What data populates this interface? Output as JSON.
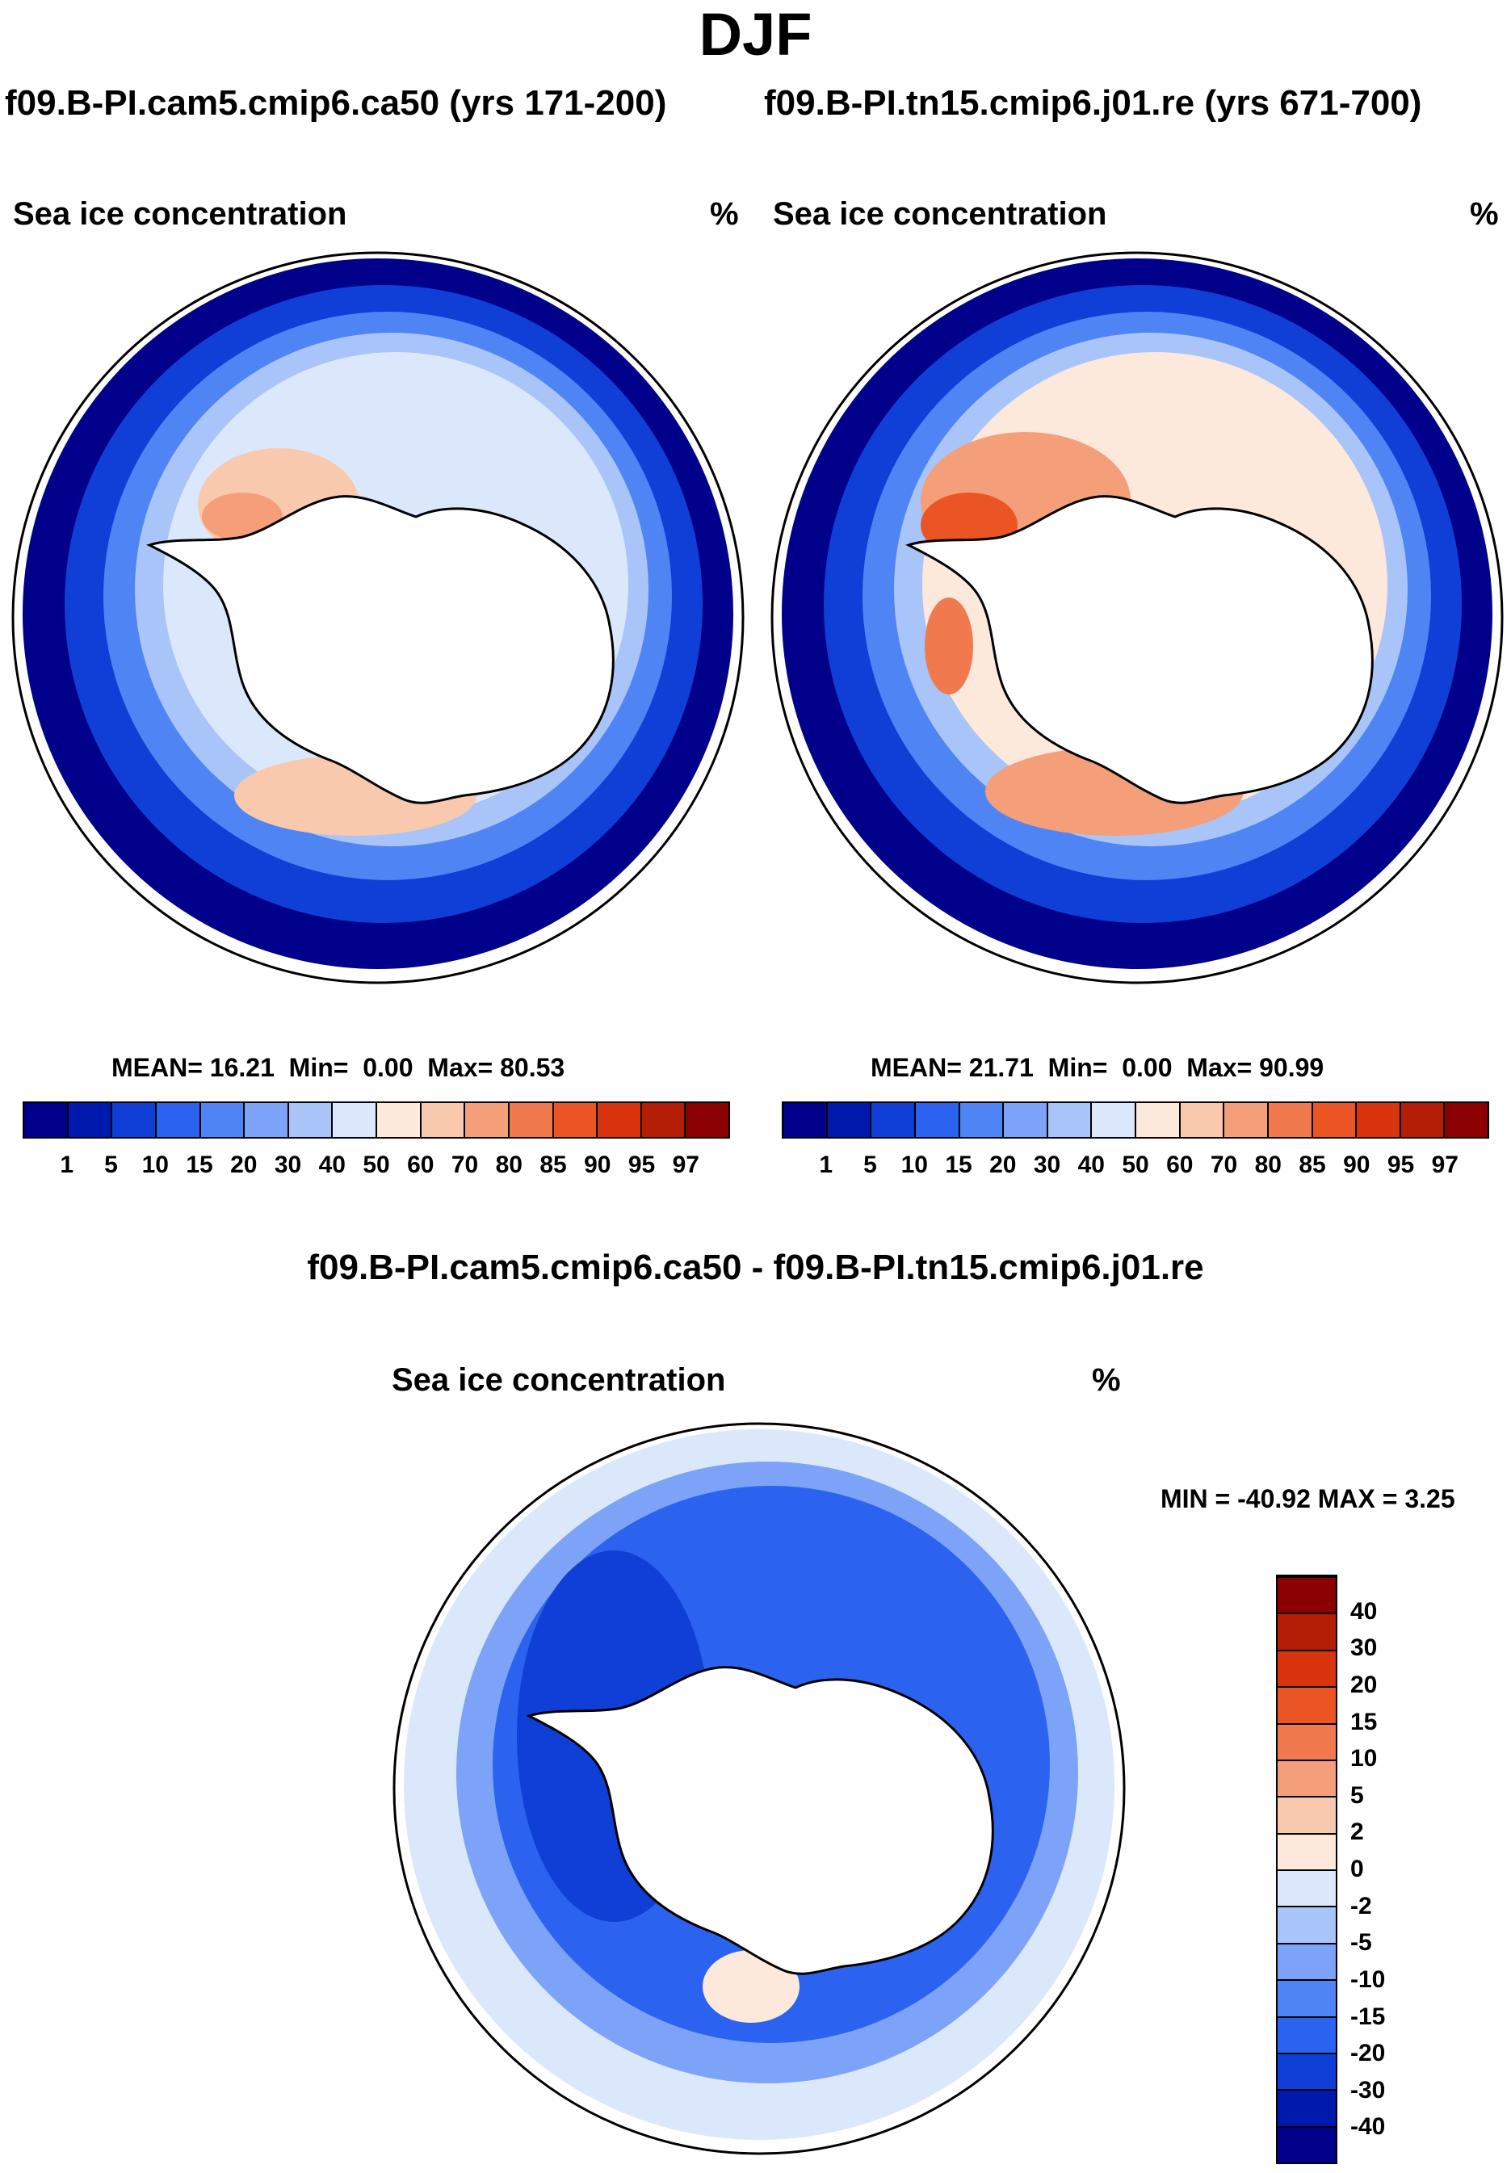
{
  "title": "DJF",
  "panels": [
    {
      "case_title": "f09.B-PI.cam5.cmip6.ca50 (yrs 171-200)",
      "variable": "Sea ice concentration",
      "units": "%",
      "mean_label": "MEAN=",
      "mean": "16.21",
      "min_label": "Min=",
      "min": "0.00",
      "max_label": "Max=",
      "max": "80.53"
    },
    {
      "case_title": "f09.B-PI.tn15.cmip6.j01.re (yrs 671-700)",
      "variable": "Sea ice concentration",
      "units": "%",
      "mean_label": "MEAN=",
      "mean": "21.71",
      "min_label": "Min=",
      "min": "0.00",
      "max_label": "Max=",
      "max": "90.99"
    }
  ],
  "colorbar": {
    "ticks": [
      "1",
      "5",
      "10",
      "15",
      "20",
      "30",
      "40",
      "50",
      "60",
      "70",
      "80",
      "85",
      "90",
      "95",
      "97"
    ],
    "colors": [
      "#00008b",
      "#0019ad",
      "#0f3fd6",
      "#2b63f0",
      "#4f84f5",
      "#7ca3f7",
      "#a9c4f8",
      "#dbe8fb",
      "#fde8dc",
      "#f9c9ad",
      "#f49e7a",
      "#f07a4e",
      "#ea5523",
      "#d8350e",
      "#b41e06",
      "#8b0000"
    ]
  },
  "diff": {
    "title": "f09.B-PI.cam5.cmip6.ca50 - f09.B-PI.tn15.cmip6.j01.re",
    "variable": "Sea ice concentration",
    "units": "%",
    "minmax": "MIN = -40.92 MAX =   3.25",
    "ticks": [
      "-40",
      "-30",
      "-20",
      "-15",
      "-10",
      "-5",
      "-2",
      "0",
      "2",
      "5",
      "10",
      "15",
      "20",
      "30",
      "40"
    ],
    "colors": [
      "#00008b",
      "#0019ad",
      "#0f3fd6",
      "#2b63f0",
      "#4f84f5",
      "#7ca3f7",
      "#a9c4f8",
      "#dbe8fb",
      "#fde8dc",
      "#f9c9ad",
      "#f49e7a",
      "#f07a4e",
      "#ea5523",
      "#d8350e",
      "#b41e06",
      "#8b0000"
    ]
  }
}
